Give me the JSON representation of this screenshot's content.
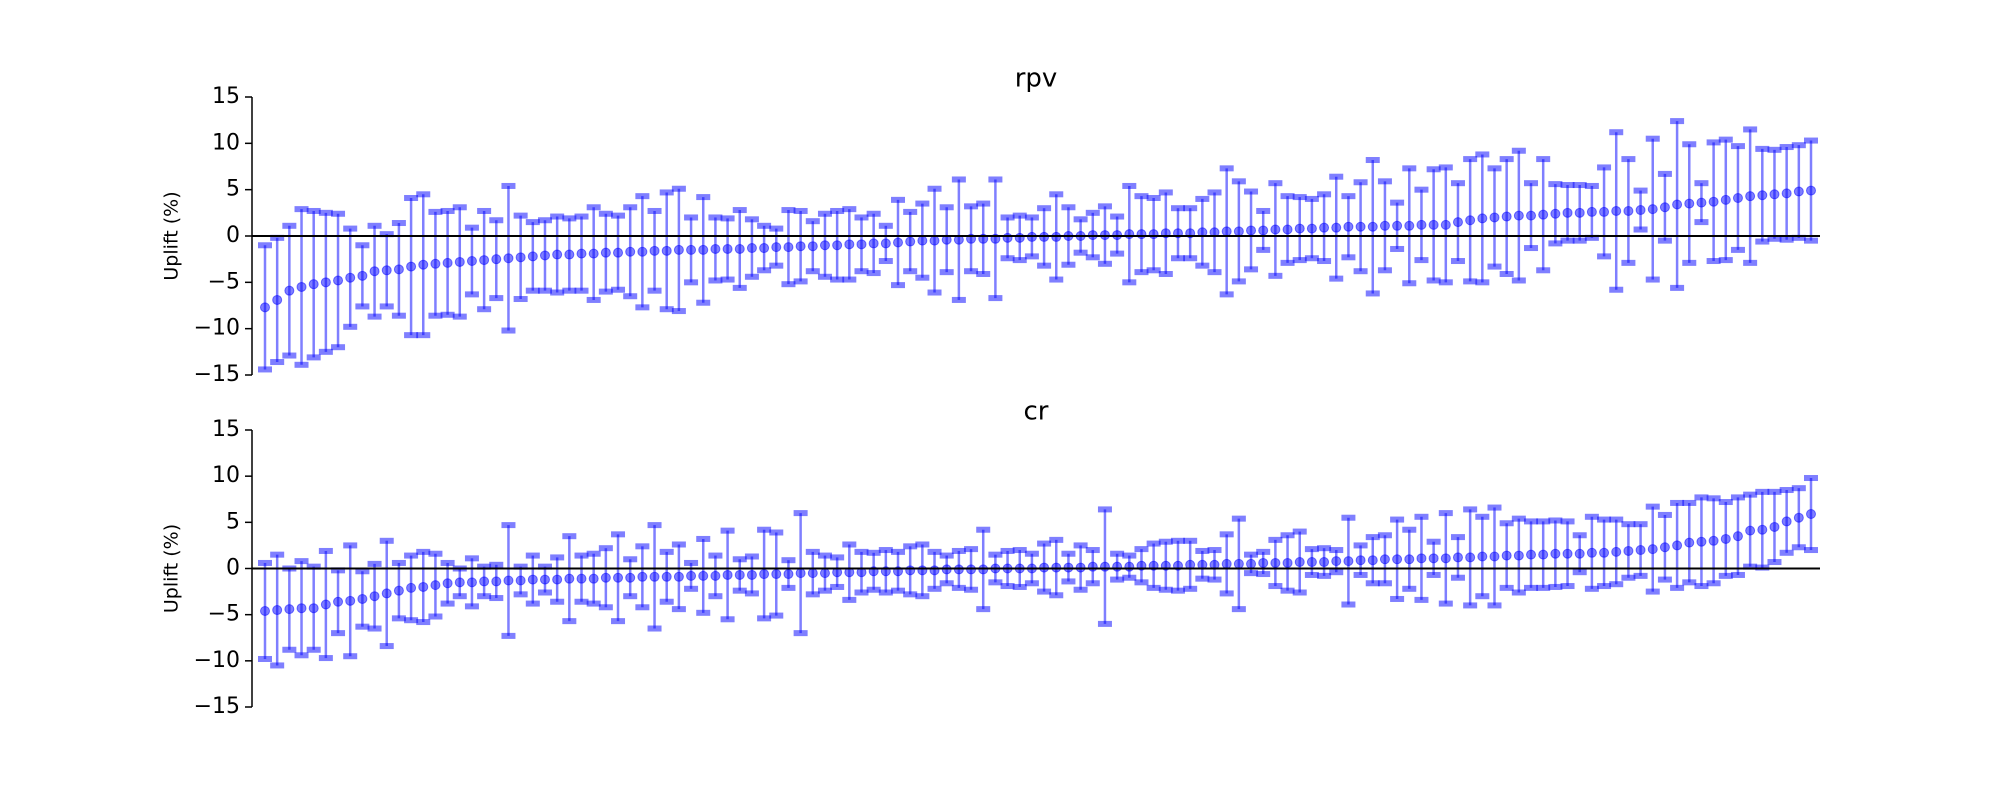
{
  "chart_data": [
    {
      "type": "errorbar",
      "title": "rpv",
      "ylabel": "Uplift (%)",
      "color": "#0000ff",
      "ylim": [
        -15,
        15
      ],
      "yticks": [
        {
          "value": -15,
          "label": "−15"
        },
        {
          "value": -10,
          "label": "−10"
        },
        {
          "value": -5,
          "label": "−5"
        },
        0,
        5,
        10,
        15
      ],
      "values": [
        -7.7,
        -6.9,
        -5.9,
        -5.5,
        -5.2,
        -5.0,
        -4.8,
        -4.5,
        -4.3,
        -3.8,
        -3.7,
        -3.6,
        -3.3,
        -3.1,
        -3.0,
        -2.9,
        -2.8,
        -2.7,
        -2.6,
        -2.5,
        -2.4,
        -2.3,
        -2.2,
        -2.1,
        -2.0,
        -2.0,
        -1.9,
        -1.9,
        -1.8,
        -1.8,
        -1.7,
        -1.7,
        -1.6,
        -1.6,
        -1.5,
        -1.5,
        -1.5,
        -1.4,
        -1.4,
        -1.4,
        -1.3,
        -1.3,
        -1.2,
        -1.2,
        -1.1,
        -1.1,
        -1.0,
        -1.0,
        -0.9,
        -0.9,
        -0.8,
        -0.8,
        -0.7,
        -0.6,
        -0.5,
        -0.5,
        -0.4,
        -0.4,
        -0.3,
        -0.3,
        -0.3,
        -0.2,
        -0.2,
        -0.1,
        -0.1,
        -0.1,
        0.0,
        0.0,
        0.1,
        0.1,
        0.1,
        0.2,
        0.2,
        0.2,
        0.3,
        0.3,
        0.3,
        0.4,
        0.4,
        0.5,
        0.5,
        0.6,
        0.6,
        0.7,
        0.7,
        0.8,
        0.8,
        0.9,
        0.9,
        1.0,
        1.0,
        1.0,
        1.1,
        1.1,
        1.1,
        1.2,
        1.2,
        1.2,
        1.5,
        1.7,
        1.9,
        2.0,
        2.1,
        2.2,
        2.2,
        2.3,
        2.4,
        2.5,
        2.5,
        2.6,
        2.6,
        2.7,
        2.7,
        2.8,
        2.9,
        3.1,
        3.4,
        3.5,
        3.6,
        3.7,
        3.9,
        4.1,
        4.3,
        4.4,
        4.5,
        4.6,
        4.8,
        4.9
      ],
      "errors": [
        6.7,
        6.7,
        7.0,
        8.4,
        7.9,
        7.5,
        7.2,
        5.3,
        3.3,
        4.9,
        3.9,
        5.0,
        7.4,
        7.6,
        5.6,
        5.6,
        5.9,
        3.6,
        5.3,
        4.2,
        7.8,
        4.5,
        3.7,
        3.8,
        4.1,
        3.9,
        4.0,
        5.0,
        4.2,
        4.0,
        4.8,
        6.0,
        4.3,
        6.3,
        6.6,
        3.5,
        5.7,
        3.4,
        3.3,
        4.2,
        3.1,
        2.4,
        2.0,
        4.0,
        3.8,
        2.7,
        3.4,
        3.7,
        3.8,
        2.9,
        3.2,
        1.9,
        4.6,
        3.2,
        4.0,
        5.6,
        3.5,
        6.5,
        3.5,
        3.8,
        6.4,
        2.2,
        2.4,
        2.1,
        3.1,
        4.6,
        3.1,
        1.8,
        2.4,
        3.1,
        2.0,
        5.2,
        4.1,
        3.9,
        4.4,
        2.7,
        2.7,
        3.6,
        4.3,
        6.8,
        5.4,
        4.2,
        2.1,
        5.0,
        3.6,
        3.4,
        3.2,
        3.6,
        5.5,
        3.3,
        4.8,
        7.2,
        4.8,
        2.5,
        6.2,
        3.8,
        6.0,
        6.2,
        4.2,
        6.6,
        6.9,
        5.3,
        6.2,
        7.0,
        3.5,
        6.0,
        3.2,
        3.0,
        3.0,
        2.8,
        4.8,
        8.5,
        5.6,
        2.1,
        7.6,
        3.6,
        9.0,
        6.4,
        2.1,
        6.4,
        6.5,
        5.6,
        7.2,
        5.0,
        4.8,
        5.0,
        5.0,
        5.4
      ]
    },
    {
      "type": "errorbar",
      "title": "cr",
      "ylabel": "Uplift (%)",
      "color": "#0000ff",
      "ylim": [
        -15,
        15
      ],
      "yticks": [
        {
          "value": -15,
          "label": "−15"
        },
        {
          "value": -10,
          "label": "−10"
        },
        {
          "value": -5,
          "label": "−5"
        },
        0,
        5,
        10,
        15
      ],
      "values": [
        -4.6,
        -4.5,
        -4.4,
        -4.3,
        -4.3,
        -3.9,
        -3.6,
        -3.5,
        -3.3,
        -3.0,
        -2.7,
        -2.4,
        -2.1,
        -2.0,
        -1.8,
        -1.6,
        -1.5,
        -1.5,
        -1.4,
        -1.4,
        -1.3,
        -1.3,
        -1.2,
        -1.2,
        -1.2,
        -1.1,
        -1.1,
        -1.1,
        -1.0,
        -1.0,
        -1.0,
        -0.9,
        -0.9,
        -0.9,
        -0.9,
        -0.8,
        -0.8,
        -0.8,
        -0.7,
        -0.7,
        -0.7,
        -0.6,
        -0.6,
        -0.6,
        -0.5,
        -0.5,
        -0.5,
        -0.4,
        -0.4,
        -0.4,
        -0.3,
        -0.3,
        -0.3,
        -0.2,
        -0.2,
        -0.2,
        -0.1,
        -0.1,
        -0.1,
        -0.1,
        0.0,
        0.0,
        0.0,
        0.0,
        0.1,
        0.1,
        0.1,
        0.1,
        0.2,
        0.2,
        0.2,
        0.2,
        0.3,
        0.3,
        0.3,
        0.3,
        0.4,
        0.4,
        0.4,
        0.5,
        0.5,
        0.5,
        0.6,
        0.6,
        0.6,
        0.7,
        0.7,
        0.7,
        0.8,
        0.8,
        0.9,
        0.9,
        1.0,
        1.0,
        1.0,
        1.1,
        1.1,
        1.1,
        1.2,
        1.2,
        1.3,
        1.3,
        1.4,
        1.4,
        1.5,
        1.5,
        1.6,
        1.6,
        1.6,
        1.7,
        1.7,
        1.8,
        1.9,
        2.0,
        2.1,
        2.3,
        2.5,
        2.8,
        2.9,
        3.0,
        3.2,
        3.5,
        4.1,
        4.2,
        4.5,
        5.1,
        5.5,
        5.9
      ],
      "errors": [
        5.2,
        6.0,
        4.4,
        5.1,
        4.5,
        5.8,
        3.4,
        6.0,
        3.0,
        3.5,
        5.7,
        3.0,
        3.5,
        3.8,
        3.4,
        2.2,
        1.5,
        2.6,
        1.6,
        1.8,
        6.0,
        1.5,
        2.6,
        1.4,
        2.4,
        4.6,
        2.5,
        2.7,
        3.2,
        4.7,
        2.0,
        3.3,
        5.6,
        2.7,
        3.5,
        1.4,
        4.0,
        2.2,
        4.8,
        1.7,
        2.0,
        4.8,
        4.5,
        1.5,
        6.5,
        2.3,
        1.9,
        1.6,
        3.0,
        2.2,
        2.0,
        2.3,
        2.1,
        2.6,
        2.8,
        2.0,
        1.5,
        2.0,
        2.2,
        4.3,
        1.5,
        1.9,
        2.0,
        1.6,
        2.6,
        3.0,
        1.5,
        2.4,
        1.8,
        6.2,
        1.4,
        1.2,
        1.8,
        2.4,
        2.6,
        2.7,
        2.6,
        1.5,
        1.6,
        3.2,
        4.9,
        1.0,
        1.2,
        2.5,
        3.0,
        3.3,
        1.4,
        1.5,
        1.2,
        4.7,
        1.6,
        2.5,
        2.6,
        4.3,
        3.2,
        4.5,
        1.8,
        4.9,
        2.2,
        5.2,
        4.3,
        5.3,
        3.5,
        4.0,
        3.6,
        3.6,
        3.6,
        3.5,
        2.0,
        3.9,
        3.6,
        3.5,
        2.9,
        2.8,
        4.6,
        3.5,
        4.6,
        4.3,
        4.8,
        4.6,
        4.0,
        4.2,
        3.9,
        4.1,
        3.8,
        3.4,
        3.2,
        3.9
      ]
    }
  ]
}
